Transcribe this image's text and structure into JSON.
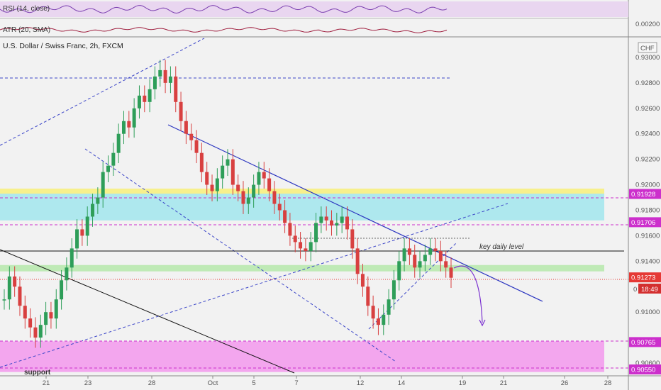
{
  "chart_data": {
    "type": "candlestick",
    "title": "U.S. Dollar / Swiss Franc, 2h, FXCM",
    "currency": "CHF",
    "ylim": [
      0.905,
      0.9315
    ],
    "y_ticks": [
      "0.93000",
      "0.92800",
      "0.92600",
      "0.92400",
      "0.92200",
      "0.92000",
      "0.91800",
      "0.91600",
      "0.91400",
      "0.91000",
      "0.90600"
    ],
    "x_ticks": [
      "21",
      "23",
      "28",
      "Oct",
      "5",
      "7",
      "12",
      "14",
      "19",
      "21",
      "26",
      "28"
    ],
    "price_levels": [
      {
        "value": "0.91928",
        "color": "#cc2fcc"
      },
      {
        "value": "0.91706",
        "color": "#cc2fcc"
      },
      {
        "value": "0.91273",
        "color": "#e53935"
      },
      {
        "value": "0.90765",
        "color": "#cc2fcc"
      },
      {
        "value": "0.90550",
        "color": "#cc2fcc"
      }
    ],
    "countdown": "18:49",
    "partial_label": "0",
    "zones": [
      {
        "name": "resistance",
        "from": 0.9172,
        "to": 0.9195,
        "color": "#aee8ee"
      },
      {
        "name": "resistance-top",
        "from": 0.9193,
        "to": 0.9197,
        "color": "#f7f08c"
      },
      {
        "name": "key-daily",
        "from": 0.9132,
        "to": 0.9137,
        "color": "#bfeab6"
      },
      {
        "name": "support",
        "from": 0.9053,
        "to": 0.9077,
        "color": "#f3a6ee"
      }
    ],
    "annotations": [
      "key daily level",
      "support"
    ],
    "panes": [
      {
        "name": "RSI (14, close)",
        "value": ""
      },
      {
        "name": "ATR (20, SMA)",
        "value": "0.00200"
      }
    ],
    "series": [
      {
        "name": "USD/CHF",
        "values": [
          0.911,
          0.9128,
          0.912,
          0.9105,
          0.9095,
          0.9088,
          0.908,
          0.909,
          0.91,
          0.9095,
          0.911,
          0.9125,
          0.9135,
          0.915,
          0.9165,
          0.916,
          0.9175,
          0.9185,
          0.919,
          0.921,
          0.9215,
          0.9225,
          0.924,
          0.925,
          0.9245,
          0.926,
          0.927,
          0.9265,
          0.9275,
          0.9285,
          0.929,
          0.928,
          0.9285,
          0.9265,
          0.925,
          0.924,
          0.9235,
          0.9225,
          0.921,
          0.92,
          0.9195,
          0.9205,
          0.9215,
          0.922,
          0.92,
          0.9195,
          0.9185,
          0.919,
          0.92,
          0.921,
          0.9205,
          0.9195,
          0.9185,
          0.918,
          0.917,
          0.916,
          0.9155,
          0.915,
          0.9148,
          0.9155,
          0.917,
          0.9175,
          0.9172,
          0.9168,
          0.917,
          0.9175,
          0.9165,
          0.915,
          0.913,
          0.912,
          0.9105,
          0.9095,
          0.909,
          0.9098,
          0.911,
          0.9125,
          0.914,
          0.915,
          0.9145,
          0.9135,
          0.914,
          0.9145,
          0.915,
          0.9148,
          0.914,
          0.9135,
          0.9127
        ]
      }
    ]
  }
}
